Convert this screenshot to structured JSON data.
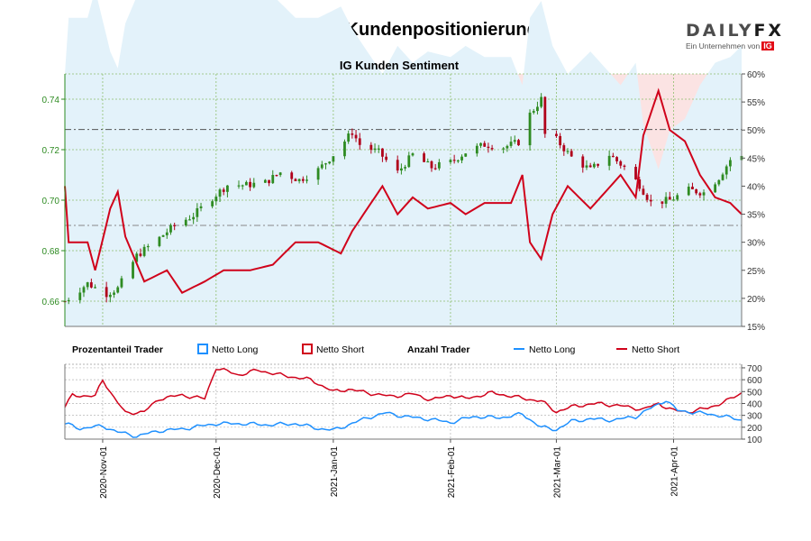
{
  "header": {
    "title": "NZD/USD Kundenpositionierung",
    "logo_main": "DAILY",
    "logo_fx": "FX",
    "logo_sub": "Ein Unternehmen von",
    "logo_ig": "IG"
  },
  "colors": {
    "long": "#1e90ff",
    "short": "#d0021b",
    "candle_up": "#2e8b22",
    "candle_down": "#b0001a",
    "short_bg": "#fbe3e3",
    "long_bg": "#e3f2fa"
  },
  "chart_data": [
    {
      "type": "candlestick",
      "title": "IG Kunden Sentiment",
      "y_left": {
        "range": [
          0.65,
          0.75
        ],
        "ticks": [
          0.66,
          0.68,
          0.7,
          0.72,
          0.74
        ],
        "tick_labels": [
          "0.66",
          "0.68",
          "0.70",
          "0.72",
          "0.74"
        ]
      },
      "y_right": {
        "range": [
          15,
          60
        ],
        "ticks": [
          15,
          20,
          25,
          30,
          35,
          40,
          45,
          50,
          55,
          60
        ],
        "tick_labels": [
          "15%",
          "20%",
          "25%",
          "30%",
          "35%",
          "40%",
          "45%",
          "50%",
          "55%",
          "60%"
        ]
      },
      "date_range": [
        "2020-10-22",
        "2021-04-19"
      ],
      "reference_lines": {
        "price": 0.728,
        "percent": 50,
        "price2": 0.69
      },
      "grid": true,
      "price_close_anchors": [
        [
          "2020-10-22",
          0.66
        ],
        [
          "2020-10-28",
          0.667
        ],
        [
          "2020-11-02",
          0.663
        ],
        [
          "2020-11-05",
          0.665
        ],
        [
          "2020-11-10",
          0.678
        ],
        [
          "2020-11-16",
          0.685
        ],
        [
          "2020-11-20",
          0.69
        ],
        [
          "2020-11-25",
          0.694
        ],
        [
          "2020-11-30",
          0.701
        ],
        [
          "2020-12-04",
          0.706
        ],
        [
          "2020-12-09",
          0.706
        ],
        [
          "2020-12-14",
          0.707
        ],
        [
          "2020-12-18",
          0.711
        ],
        [
          "2020-12-23",
          0.708
        ],
        [
          "2020-12-28",
          0.712
        ],
        [
          "2021-01-01",
          0.718
        ],
        [
          "2021-01-06",
          0.727
        ],
        [
          "2021-01-08",
          0.722
        ],
        [
          "2021-01-13",
          0.719
        ],
        [
          "2021-01-18",
          0.711
        ],
        [
          "2021-01-22",
          0.718
        ],
        [
          "2021-01-27",
          0.713
        ],
        [
          "2021-02-01",
          0.715
        ],
        [
          "2021-02-05",
          0.719
        ],
        [
          "2021-02-10",
          0.722
        ],
        [
          "2021-02-15",
          0.721
        ],
        [
          "2021-02-19",
          0.723
        ],
        [
          "2021-02-22",
          0.734
        ],
        [
          "2021-02-25",
          0.74
        ],
        [
          "2021-02-26",
          0.726
        ],
        [
          "2021-03-01",
          0.724
        ],
        [
          "2021-03-05",
          0.717
        ],
        [
          "2021-03-10",
          0.712
        ],
        [
          "2021-03-15",
          0.718
        ],
        [
          "2021-03-19",
          0.713
        ],
        [
          "2021-03-23",
          0.706
        ],
        [
          "2021-03-26",
          0.699
        ],
        [
          "2021-03-31",
          0.7
        ],
        [
          "2021-04-05",
          0.704
        ],
        [
          "2021-04-09",
          0.703
        ],
        [
          "2021-04-13",
          0.709
        ],
        [
          "2021-04-16",
          0.716
        ],
        [
          "2021-04-19",
          0.717
        ]
      ],
      "netto_short_percent_anchors": [
        [
          "2020-10-22",
          40
        ],
        [
          "2020-10-23",
          30
        ],
        [
          "2020-10-28",
          30
        ],
        [
          "2020-10-30",
          25
        ],
        [
          "2020-11-03",
          36
        ],
        [
          "2020-11-05",
          39
        ],
        [
          "2020-11-07",
          31
        ],
        [
          "2020-11-12",
          23
        ],
        [
          "2020-11-18",
          25
        ],
        [
          "2020-11-22",
          21
        ],
        [
          "2020-11-28",
          23
        ],
        [
          "2020-12-03",
          25
        ],
        [
          "2020-12-10",
          25
        ],
        [
          "2020-12-16",
          26
        ],
        [
          "2020-12-22",
          30
        ],
        [
          "2020-12-28",
          30
        ],
        [
          "2021-01-03",
          28
        ],
        [
          "2021-01-06",
          32
        ],
        [
          "2021-01-10",
          36
        ],
        [
          "2021-01-14",
          40
        ],
        [
          "2021-01-18",
          35
        ],
        [
          "2021-01-22",
          38
        ],
        [
          "2021-01-26",
          36
        ],
        [
          "2021-02-01",
          37
        ],
        [
          "2021-02-05",
          35
        ],
        [
          "2021-02-10",
          37
        ],
        [
          "2021-02-17",
          37
        ],
        [
          "2021-02-20",
          42
        ],
        [
          "2021-02-22",
          30
        ],
        [
          "2021-02-25",
          27
        ],
        [
          "2021-02-28",
          35
        ],
        [
          "2021-03-04",
          40
        ],
        [
          "2021-03-10",
          36
        ],
        [
          "2021-03-14",
          39
        ],
        [
          "2021-03-18",
          42
        ],
        [
          "2021-03-22",
          38
        ],
        [
          "2021-03-24",
          49
        ],
        [
          "2021-03-28",
          57
        ],
        [
          "2021-03-31",
          50
        ],
        [
          "2021-04-04",
          48
        ],
        [
          "2021-04-08",
          42
        ],
        [
          "2021-04-12",
          38
        ],
        [
          "2021-04-16",
          37
        ],
        [
          "2021-04-19",
          35
        ]
      ]
    },
    {
      "type": "line",
      "legend": [
        {
          "label": "Prozentanteil Trader",
          "kind": "header"
        },
        {
          "label": "Netto Long",
          "kind": "box",
          "color": "#1e90ff"
        },
        {
          "label": "Netto Short",
          "kind": "box",
          "color": "#d0021b"
        },
        {
          "label": "Anzahl Trader",
          "kind": "header"
        },
        {
          "label": "Netto Long",
          "kind": "line",
          "color": "#1e90ff"
        },
        {
          "label": "Netto Short",
          "kind": "line",
          "color": "#d0021b"
        }
      ],
      "y_right": {
        "range": [
          100,
          730
        ],
        "ticks": [
          100,
          200,
          300,
          400,
          500,
          600,
          700
        ],
        "tick_labels": [
          "100",
          "200",
          "300",
          "400",
          "500",
          "600",
          "700"
        ]
      },
      "x_ticks": [
        "2020-Nov-01",
        "2020-Dec-01",
        "2021-Jan-01",
        "2021-Feb-01",
        "2021-Mar-01",
        "2021-Apr-01"
      ],
      "x_tick_dates": [
        "2020-11-01",
        "2020-12-01",
        "2021-01-01",
        "2021-02-01",
        "2021-03-01",
        "2021-04-01"
      ],
      "series": [
        {
          "name": "Netto Short",
          "color": "#d0021b",
          "anchors": [
            [
              "2020-10-22",
              370
            ],
            [
              "2020-10-24",
              470
            ],
            [
              "2020-10-30",
              460
            ],
            [
              "2020-11-01",
              600
            ],
            [
              "2020-11-04",
              450
            ],
            [
              "2020-11-07",
              320
            ],
            [
              "2020-11-12",
              330
            ],
            [
              "2020-11-16",
              440
            ],
            [
              "2020-11-22",
              470
            ],
            [
              "2020-11-28",
              440
            ],
            [
              "2020-12-01",
              700
            ],
            [
              "2020-12-07",
              640
            ],
            [
              "2020-12-12",
              680
            ],
            [
              "2020-12-18",
              640
            ],
            [
              "2020-12-26",
              600
            ],
            [
              "2021-01-01",
              500
            ],
            [
              "2021-01-05",
              520
            ],
            [
              "2021-01-10",
              490
            ],
            [
              "2021-01-16",
              460
            ],
            [
              "2021-01-22",
              480
            ],
            [
              "2021-01-27",
              430
            ],
            [
              "2021-02-01",
              470
            ],
            [
              "2021-02-05",
              440
            ],
            [
              "2021-02-12",
              490
            ],
            [
              "2021-02-19",
              450
            ],
            [
              "2021-02-25",
              420
            ],
            [
              "2021-03-01",
              330
            ],
            [
              "2021-03-06",
              380
            ],
            [
              "2021-03-12",
              400
            ],
            [
              "2021-03-18",
              380
            ],
            [
              "2021-03-24",
              350
            ],
            [
              "2021-03-28",
              400
            ],
            [
              "2021-04-01",
              340
            ],
            [
              "2021-04-05",
              330
            ],
            [
              "2021-04-10",
              360
            ],
            [
              "2021-04-15",
              420
            ],
            [
              "2021-04-19",
              490
            ]
          ]
        },
        {
          "name": "Netto Long",
          "color": "#1e90ff",
          "anchors": [
            [
              "2020-10-22",
              230
            ],
            [
              "2020-10-26",
              190
            ],
            [
              "2020-11-01",
              210
            ],
            [
              "2020-11-05",
              160
            ],
            [
              "2020-11-10",
              125
            ],
            [
              "2020-11-16",
              170
            ],
            [
              "2020-11-22",
              185
            ],
            [
              "2020-12-01",
              230
            ],
            [
              "2020-12-08",
              230
            ],
            [
              "2020-12-15",
              220
            ],
            [
              "2020-12-22",
              230
            ],
            [
              "2020-12-28",
              190
            ],
            [
              "2021-01-01",
              175
            ],
            [
              "2021-01-05",
              220
            ],
            [
              "2021-01-10",
              280
            ],
            [
              "2021-01-15",
              320
            ],
            [
              "2021-01-20",
              290
            ],
            [
              "2021-01-26",
              270
            ],
            [
              "2021-02-01",
              240
            ],
            [
              "2021-02-07",
              290
            ],
            [
              "2021-02-14",
              280
            ],
            [
              "2021-02-20",
              310
            ],
            [
              "2021-02-25",
              200
            ],
            [
              "2021-03-01",
              180
            ],
            [
              "2021-03-05",
              250
            ],
            [
              "2021-03-10",
              270
            ],
            [
              "2021-03-16",
              260
            ],
            [
              "2021-03-22",
              290
            ],
            [
              "2021-03-26",
              360
            ],
            [
              "2021-03-30",
              430
            ],
            [
              "2021-04-02",
              340
            ],
            [
              "2021-04-08",
              320
            ],
            [
              "2021-04-13",
              300
            ],
            [
              "2021-04-19",
              260
            ]
          ]
        }
      ]
    }
  ]
}
